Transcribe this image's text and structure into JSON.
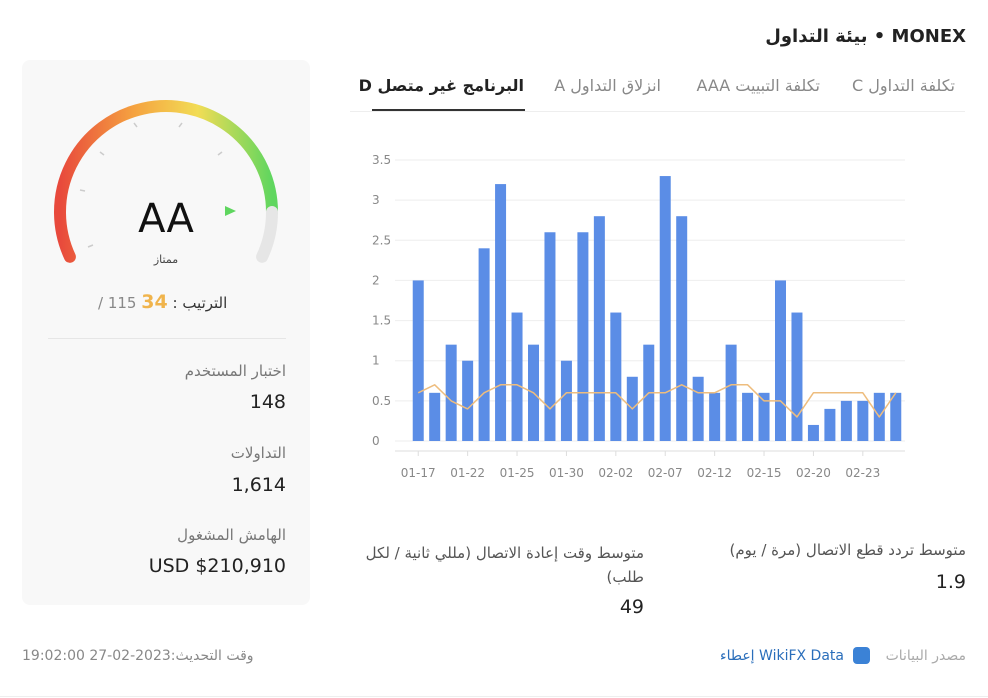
{
  "header": {
    "title": "MONEX • بيئة التداول"
  },
  "tabs": [
    "تكلفة التداول C",
    "تكلفة التبييت AAA",
    "انزلاق التداول A",
    "البرنامج غير متصل D"
  ],
  "rating": {
    "grade": "AA",
    "grade_text": "ممتاز",
    "rank_label": "الترتيب",
    "rank": "34",
    "rank_total": "/ 115"
  },
  "stats": [
    {
      "label": "اختبار المستخدم",
      "value": "148"
    },
    {
      "label": "التداولات",
      "value": "1,614"
    },
    {
      "label": "الهامش المشغول",
      "value": "USD $210,910"
    }
  ],
  "chart_data": {
    "type": "bar",
    "categories": [
      "01-17",
      null,
      null,
      "01-22",
      null,
      null,
      "01-25",
      null,
      null,
      "01-30",
      null,
      null,
      "02-02",
      null,
      null,
      "02-07",
      null,
      null,
      "02-12",
      null,
      null,
      "02-15",
      null,
      null,
      "02-20",
      null,
      null,
      "02-23",
      null,
      null
    ],
    "series": [
      {
        "type": "bar",
        "color": "#5b8de6",
        "values": [
          2.0,
          0.6,
          1.2,
          1.0,
          2.4,
          3.2,
          1.6,
          1.2,
          2.6,
          1.0,
          2.6,
          2.8,
          1.6,
          0.8,
          1.2,
          3.3,
          2.8,
          0.8,
          0.6,
          1.2,
          0.6,
          0.6,
          2.0,
          1.6,
          0.2,
          0.4,
          0.5,
          0.5,
          0.6,
          0.6
        ]
      },
      {
        "type": "line",
        "color": "#eebd7e",
        "values": [
          0.6,
          0.7,
          0.5,
          0.4,
          0.6,
          0.7,
          0.7,
          0.6,
          0.4,
          0.6,
          0.6,
          0.6,
          0.6,
          0.4,
          0.6,
          0.6,
          0.7,
          0.6,
          0.6,
          0.7,
          0.7,
          0.5,
          0.5,
          0.3,
          0.6,
          0.6,
          0.6,
          0.6,
          0.3,
          0.6
        ]
      }
    ],
    "ylim": [
      0,
      3.5
    ],
    "yticks": [
      0,
      0.5,
      1,
      1.5,
      2,
      2.5,
      3,
      3.5
    ],
    "grid": true
  },
  "metrics": [
    {
      "label": "متوسط تردد قطع الاتصال (مرة / يوم)",
      "value": "1.9"
    },
    {
      "label": "متوسط وقت إعادة الاتصال (مللي ثانية / لكل طلب)",
      "value": "49"
    }
  ],
  "footer": {
    "updated": "وقت التحديث:2023-02-27 19:02:00",
    "source_label": "مصدر البيانات",
    "source": "WikiFX Data إعطاء"
  }
}
